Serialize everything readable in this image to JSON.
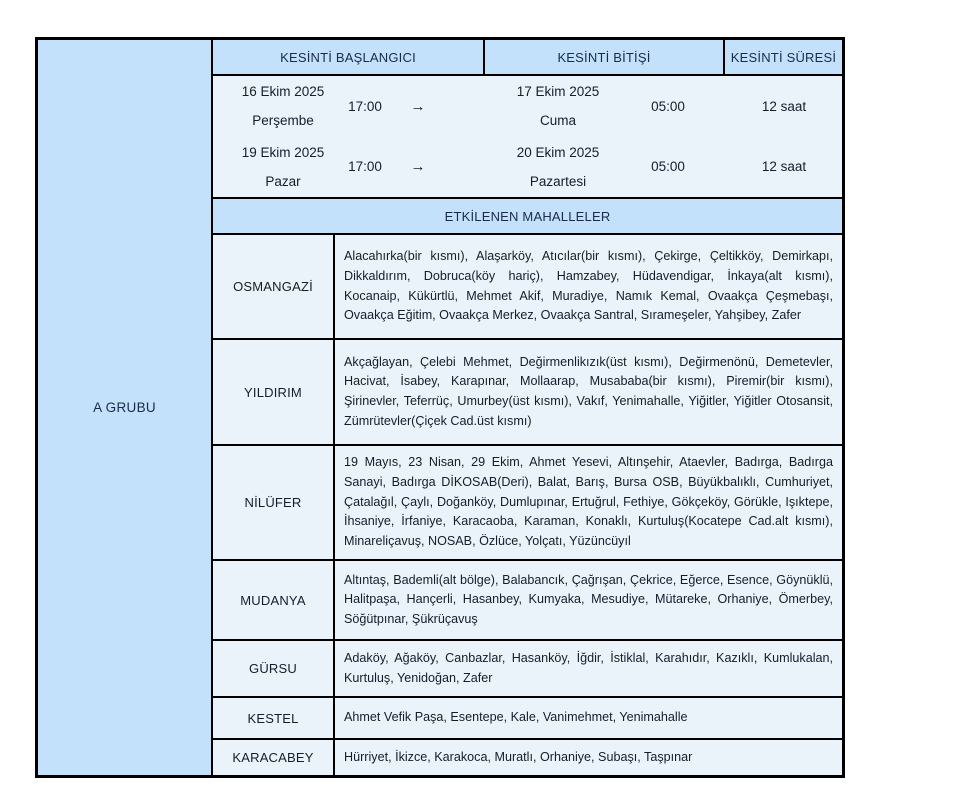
{
  "colors": {
    "header_bg": "#c3e1fa",
    "cell_bg": "#eaf3fa",
    "border": "#000000",
    "header_text": "#1b2b47",
    "body_text": "#141d2b",
    "page_bg": "#ffffff"
  },
  "group": {
    "label": "A GRUBU"
  },
  "header": {
    "start": "KESİNTİ BAŞLANGICI",
    "end": "KESİNTİ BİTİŞİ",
    "duration": "KESİNTİ SÜRESİ"
  },
  "schedule": [
    {
      "start_date": "16 Ekim 2025",
      "start_day": "Perşembe",
      "start_time": "17:00",
      "arrow": "→",
      "end_date": "17 Ekim 2025",
      "end_day": "Cuma",
      "end_time": "05:00",
      "duration": "12 saat"
    },
    {
      "start_date": "19 Ekim 2025",
      "start_day": "Pazar",
      "start_time": "17:00",
      "arrow": "→",
      "end_date": "20 Ekim 2025",
      "end_day": "Pazartesi",
      "end_time": "05:00",
      "duration": "12 saat"
    }
  ],
  "section_header": "ETKİLENEN MAHALLELER",
  "districts": [
    {
      "name": "OSMANGAZİ",
      "areas": "Alacahırka(bir kısmı), Alaşarköy, Atıcılar(bir kısmı), Çekirge, Çeltikköy, Demirkapı, Dikkaldırım, Dobruca(köy hariç), Hamzabey, Hüdavendigar, İnkaya(alt kısmı), Kocanaip, Kükürtlü, Mehmet Akif, Muradiye, Namık Kemal, Ovaakça Çeşmebaşı, Ovaakça Eğitim, Ovaakça Merkez, Ovaakça Santral, Sırameşeler, Yahşibey, Zafer"
    },
    {
      "name": "YILDIRIM",
      "areas": "Akçağlayan, Çelebi Mehmet, Değirmenlikızık(üst kısmı), Değirmenönü, Demetevler, Hacivat, İsabey, Karapınar, Mollaarap, Musababa(bir kısmı), Piremir(bir kısmı), Şirinevler, Teferrüç, Umurbey(üst kısmı), Vakıf, Yenimahalle, Yiğitler, Yiğitler Otosansit, Zümrütevler(Çiçek Cad.üst kısmı)"
    },
    {
      "name": "NİLÜFER",
      "areas": "19 Mayıs, 23 Nisan, 29 Ekim, Ahmet Yesevi, Altınşehir, Ataevler, Badırga, Badırga Sanayi, Badırga DİKOSAB(Deri), Balat, Barış, Bursa OSB, Büyükbalıklı, Cumhuriyet, Çatalağıl, Çaylı, Doğanköy, Dumlupınar, Ertuğrul, Fethiye, Gökçeköy, Görükle, Işıktepe, İhsaniye, İrfaniye, Karacaoba, Karaman, Konaklı, Kurtuluş(Kocatepe Cad.alt kısmı), Minareliçavuş, NOSAB, Özlüce, Yolçatı, Yüzüncüyıl"
    },
    {
      "name": "MUDANYA",
      "areas": "Altıntaş, Bademli(alt bölge), Balabancık, Çağrışan, Çekrice, Eğerce, Esence, Göynüklü, Halitpaşa, Hançerli, Hasanbey, Kumyaka, Mesudiye, Mütareke, Orhaniye, Ömerbey, Söğütpınar, Şükrüçavuş"
    },
    {
      "name": "GÜRSU",
      "areas": "Adaköy, Ağaköy, Canbazlar, Hasanköy, İğdir, İstiklal, Karahıdır, Kazıklı, Kumlukalan, Kurtuluş, Yenidoğan, Zafer"
    },
    {
      "name": "KESTEL",
      "areas": "Ahmet Vefik Paşa, Esentepe, Kale, Vanimehmet, Yenimahalle"
    },
    {
      "name": "KARACABEY",
      "areas": "Hürriyet, İkizce, Karakoca, Muratlı, Orhaniye, Subaşı, Taşpınar"
    }
  ]
}
